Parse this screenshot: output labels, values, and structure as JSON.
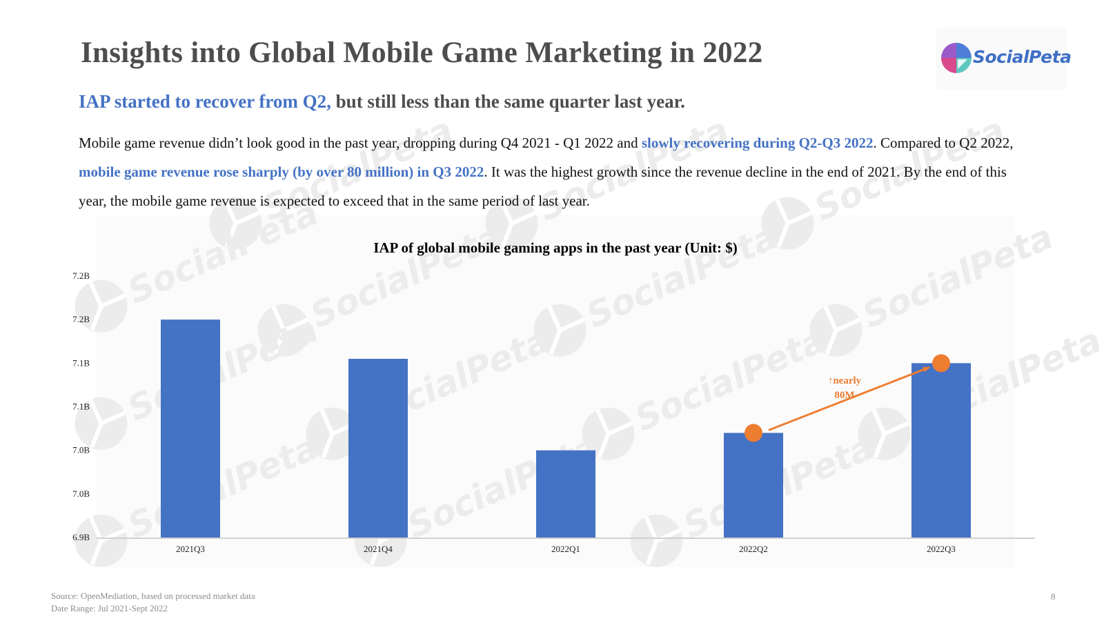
{
  "slide": {
    "title": "Insights into Global Mobile Game Marketing in 2022",
    "logo_text": "SocialPeta",
    "watermark_text": "SocialPeta",
    "subtitle_highlight": "IAP started to recover from Q2,",
    "subtitle_rest": " but still less than the same quarter last year.",
    "body": {
      "p1": "Mobile game revenue didn’t look good in the past year, dropping during Q4 2021 - Q1 2022 and ",
      "h1": "slowly recovering during Q2-Q3 2022",
      "p2": ". Compared to Q2 2022, ",
      "h2": "mobile game revenue rose sharply (by over 80 million) in Q3 2022",
      "p3": ". It was the highest growth since the revenue decline in the end of 2021. By the end of this year, the mobile game revenue is expected to exceed that in the same period of last year."
    },
    "source": "Source: OpenMediation, based on processed market data",
    "date_range": "Date Range: Jul 2021-Sept 2022",
    "page_number": "8"
  },
  "chart_data": {
    "type": "bar",
    "title": "IAP of global mobile gaming apps in the past year (Unit: $)",
    "xlabel": "",
    "ylabel": "",
    "categories": [
      "2021Q3",
      "2021Q4",
      "2022Q1",
      "2022Q2",
      "2022Q3"
    ],
    "values": [
      7.16,
      7.115,
      7.01,
      7.03,
      7.11
    ],
    "ylim": [
      6.91,
      7.21
    ],
    "yticks": [
      6.91,
      6.96,
      7.01,
      7.06,
      7.11,
      7.16,
      7.21
    ],
    "ytick_labels": [
      "6.9B",
      "7.0B",
      "7.0B",
      "7.1B",
      "7.1B",
      "7.2B",
      "7.2B"
    ],
    "bar_color": "#4472c4",
    "annotation": {
      "line1": "↑nearly",
      "line2": "80M",
      "from_category": "2022Q2",
      "to_category": "2022Q3",
      "color": "#ed7d31"
    },
    "grid": false,
    "legend": "none"
  }
}
